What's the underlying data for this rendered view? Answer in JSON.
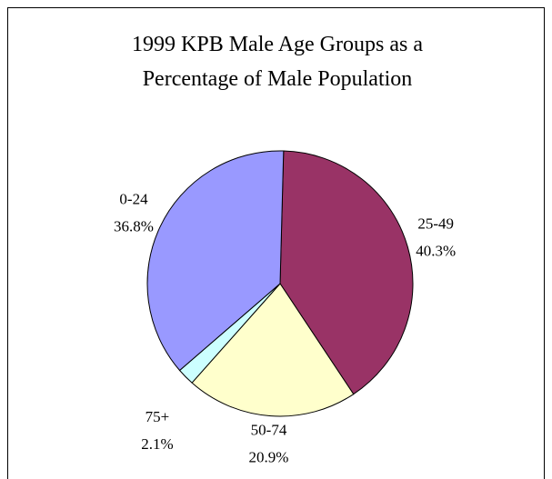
{
  "chart_data": {
    "type": "pie",
    "title": "1999 KPB Male Age Groups as a Percentage of Male Population",
    "categories": [
      "25-49",
      "50-74",
      "75+",
      "0-24"
    ],
    "values": [
      40.3,
      20.9,
      2.1,
      36.8
    ],
    "value_labels": [
      "40.3%",
      "20.9%",
      "2.1%",
      "36.8%"
    ],
    "colors": [
      "#993366",
      "#ffffcc",
      "#ccffff",
      "#9999ff"
    ]
  }
}
